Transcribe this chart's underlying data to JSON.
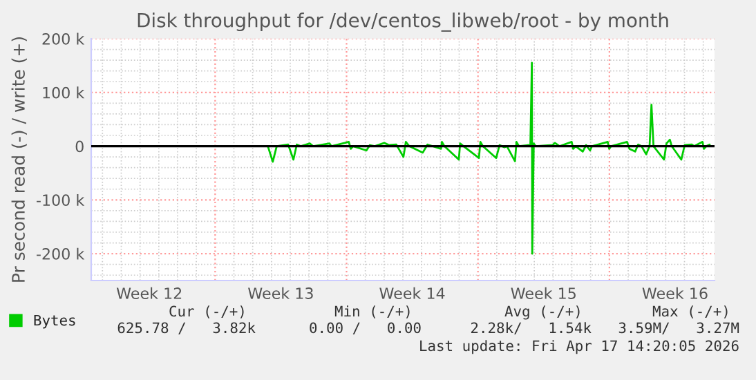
{
  "chart_data": {
    "type": "line",
    "title": "Disk throughput for /dev/centos_libweb/root - by month",
    "ylabel": "Pr second read (-) / write (+)",
    "xlim": [
      "2026-03-16T09:36",
      "2026-04-18T14:24"
    ],
    "ylim": [
      -250000,
      200000
    ],
    "xticks": [
      {
        "value": "2026-03-19T12:00",
        "label": "Week 12"
      },
      {
        "value": "2026-03-23",
        "label": null
      },
      {
        "value": "2026-03-26T12:00",
        "label": "Week 13"
      },
      {
        "value": "2026-03-30",
        "label": null
      },
      {
        "value": "2026-04-02T12:00",
        "label": "Week 14"
      },
      {
        "value": "2026-04-06",
        "label": null
      },
      {
        "value": "2026-04-09T12:00",
        "label": "Week 15"
      },
      {
        "value": "2026-04-13",
        "label": null
      },
      {
        "value": "2026-04-16T12:00",
        "label": "Week 16"
      }
    ],
    "yticks": [
      {
        "value": -200000,
        "label": "-200 k"
      },
      {
        "value": -100000,
        "label": "-100 k"
      },
      0,
      {
        "value": 100000,
        "label": "100 k"
      },
      {
        "value": 200000,
        "label": "200 k"
      }
    ],
    "grid": true,
    "legend": "bottom",
    "ref_lines": [
      {
        "axis": "y",
        "value": 0,
        "color": "#000000"
      }
    ],
    "series": [
      {
        "name": "Bytes",
        "color": "#00cc00",
        "x": [
          "2026-03-25T19:26",
          "2026-03-26T01:41",
          "2026-03-26T06:43",
          "2026-03-26T21:22",
          "2026-03-27T04:05",
          "2026-03-27T08:24",
          "2026-03-27T13:26",
          "2026-03-28T00:58",
          "2026-03-28T05:17",
          "2026-03-29T02:10",
          "2026-03-29T04:34",
          "2026-03-30T02:53",
          "2026-03-30T05:17",
          "2026-03-30T08:24",
          "2026-03-31T01:26",
          "2026-03-31T05:46",
          "2026-03-31T12:00",
          "2026-04-01T00:14",
          "2026-04-01T06:29",
          "2026-04-01T15:36",
          "2026-04-02T00:43",
          "2026-04-02T03:50",
          "2026-04-02T08:10",
          "2026-04-03T01:26",
          "2026-04-03T07:26",
          "2026-04-04T00:43",
          "2026-04-04T01:55",
          "2026-04-04T05:02",
          "2026-04-04T23:31",
          "2026-04-05T01:12",
          "2026-04-05T05:31",
          "2026-04-06T01:12",
          "2026-04-06T03:07",
          "2026-04-06T06:14",
          "2026-04-06T23:17",
          "2026-04-07T03:36",
          "2026-04-07T09:50",
          "2026-04-07T12:58",
          "2026-04-07T23:17",
          "2026-04-08T01:12",
          "2026-04-08T04:19",
          "2026-04-08T16:34",
          "2026-04-08T18:58",
          "2026-04-08T20:53",
          "2026-04-08T21:22",
          "2026-04-08T23:17",
          "2026-04-09T01:41",
          "2026-04-09T23:17",
          "2026-04-10T02:24",
          "2026-04-10T08:24",
          "2026-04-10T23:46",
          "2026-04-11T01:41",
          "2026-04-11T04:48",
          "2026-04-11T13:55",
          "2026-04-11T18:14",
          "2026-04-11T23:17",
          "2026-04-12T01:41",
          "2026-04-12T21:50",
          "2026-04-12T23:46",
          "2026-04-13T02:10",
          "2026-04-13T22:34",
          "2026-04-14T01:41",
          "2026-04-14T08:53",
          "2026-04-14T12:43",
          "2026-04-14T17:02",
          "2026-04-14T23:02",
          "2026-04-15T03:22",
          "2026-04-15T05:46",
          "2026-04-15T08:24",
          "2026-04-15T21:50",
          "2026-04-16T00:58",
          "2026-04-16T05:17",
          "2026-04-16T07:41",
          "2026-04-16T19:55",
          "2026-04-17T00:14",
          "2026-04-17T09:22",
          "2026-04-17T12:29",
          "2026-04-17T23:02",
          "2026-04-18T00:43",
          "2026-04-18T03:50",
          "2026-04-18T08:10"
        ],
        "values": [
          0,
          -29000,
          0,
          3000,
          -25000,
          3000,
          0,
          5000,
          0,
          5000,
          0,
          8000,
          -5000,
          0,
          -8000,
          2000,
          0,
          6000,
          2000,
          3000,
          -20000,
          8000,
          0,
          -12000,
          3000,
          -5000,
          8000,
          0,
          -25000,
          5000,
          0,
          -22000,
          8000,
          0,
          -22000,
          2000,
          -2000,
          0,
          -28000,
          8000,
          0,
          2000,
          0,
          155000,
          -200000,
          5000,
          0,
          2000,
          6000,
          0,
          8000,
          -5000,
          0,
          -10000,
          2000,
          -8000,
          0,
          8000,
          -5000,
          0,
          8000,
          -5000,
          -10000,
          3000,
          0,
          -15000,
          0,
          77000,
          0,
          -25000,
          5000,
          12000,
          0,
          -25000,
          2000,
          3000,
          0,
          8000,
          -5000,
          0,
          3000
        ]
      }
    ],
    "annotations": [
      "Cur (-/+)",
      "Min (-/+)",
      "Avg (-/+)",
      "Max (-/+)",
      "625.78 /   3.82k",
      "0.00 /   0.00",
      "2.28k/   1.54k",
      "3.59M/   3.27M",
      "Last update: Fri Apr 17 14:20:05 2026"
    ]
  }
}
